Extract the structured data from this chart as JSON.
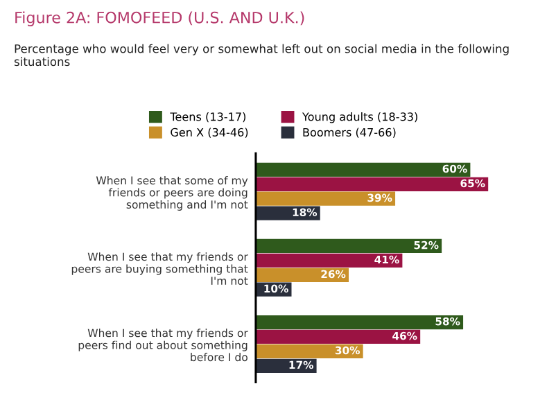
{
  "chart_data": {
    "type": "bar",
    "orientation": "horizontal",
    "title": "Figure 2A: FOMOFEED (U.S. AND U.K.)",
    "subtitle": "Percentage who would feel very or somewhat left out on social media in the following situations",
    "categories": [
      "When I see that some of my\nfriends or peers are doing\nsomething and I'm not",
      "When I see that my friends or\npeers are buying something that\nI'm not",
      "When I see that my friends or\npeers find out about something\nbefore I do"
    ],
    "series": [
      {
        "name": "Teens (13-17)",
        "color": "#2f5a1c",
        "values": [
          60,
          52,
          58
        ],
        "value_labels": [
          "60%",
          "52%",
          "58%"
        ]
      },
      {
        "name": "Young adults (18-33)",
        "color": "#9b1343",
        "values": [
          65,
          41,
          46
        ],
        "value_labels": [
          "65%",
          "41%",
          "46%"
        ]
      },
      {
        "name": "Gen X (34-46)",
        "color": "#c9902a",
        "values": [
          39,
          26,
          30
        ],
        "value_labels": [
          "39%",
          "26%",
          "30%"
        ]
      },
      {
        "name": "Boomers (47-66)",
        "color": "#2a2f3c",
        "values": [
          18,
          10,
          17
        ],
        "value_labels": [
          "18%",
          "10%",
          "17%"
        ]
      }
    ],
    "tick_labels": "y",
    "legend": "top",
    "grid": false
  }
}
